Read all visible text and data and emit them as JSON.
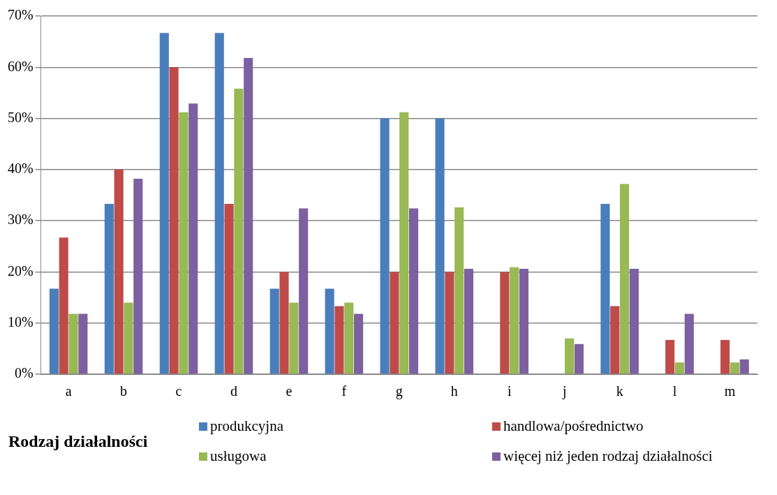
{
  "chart_data": {
    "type": "bar",
    "categories": [
      "a",
      "b",
      "c",
      "d",
      "e",
      "f",
      "g",
      "h",
      "i",
      "j",
      "k",
      "l",
      "m"
    ],
    "series": [
      {
        "name": "produkcyjna",
        "color": "#4a7ebb",
        "values": [
          16.7,
          33.3,
          66.7,
          66.7,
          16.7,
          16.7,
          50,
          50,
          0,
          0,
          33.3,
          0,
          0
        ]
      },
      {
        "name": "handlowa/pośrednictwo",
        "color": "#be4b48",
        "values": [
          26.7,
          40,
          60,
          33.3,
          20,
          13.3,
          20,
          20,
          20,
          0,
          13.3,
          6.7,
          6.7
        ]
      },
      {
        "name": "usługowa",
        "color": "#98b954",
        "values": [
          11.8,
          14,
          51.2,
          55.8,
          14,
          14,
          51.2,
          32.6,
          20.9,
          7,
          37.2,
          2.3,
          2.3
        ]
      },
      {
        "name": "więcej niż jeden rodzaj działalności",
        "color": "#7d60a0",
        "values": [
          11.8,
          38.2,
          52.9,
          61.8,
          32.4,
          11.8,
          32.4,
          20.6,
          20.6,
          5.9,
          20.6,
          11.8,
          2.9
        ]
      }
    ],
    "ylim": [
      0,
      70
    ],
    "yticks": [
      {
        "value": 0,
        "label": "0%"
      },
      {
        "value": 10,
        "label": "10%"
      },
      {
        "value": 20,
        "label": "20%"
      },
      {
        "value": 30,
        "label": "30%"
      },
      {
        "value": 40,
        "label": "40%"
      },
      {
        "value": 50,
        "label": "50%"
      },
      {
        "value": 60,
        "label": "60%"
      },
      {
        "value": 70,
        "label": "70%"
      }
    ],
    "grid": "y",
    "legend": "bottom",
    "legend_title": "Rodzaj działalności"
  }
}
